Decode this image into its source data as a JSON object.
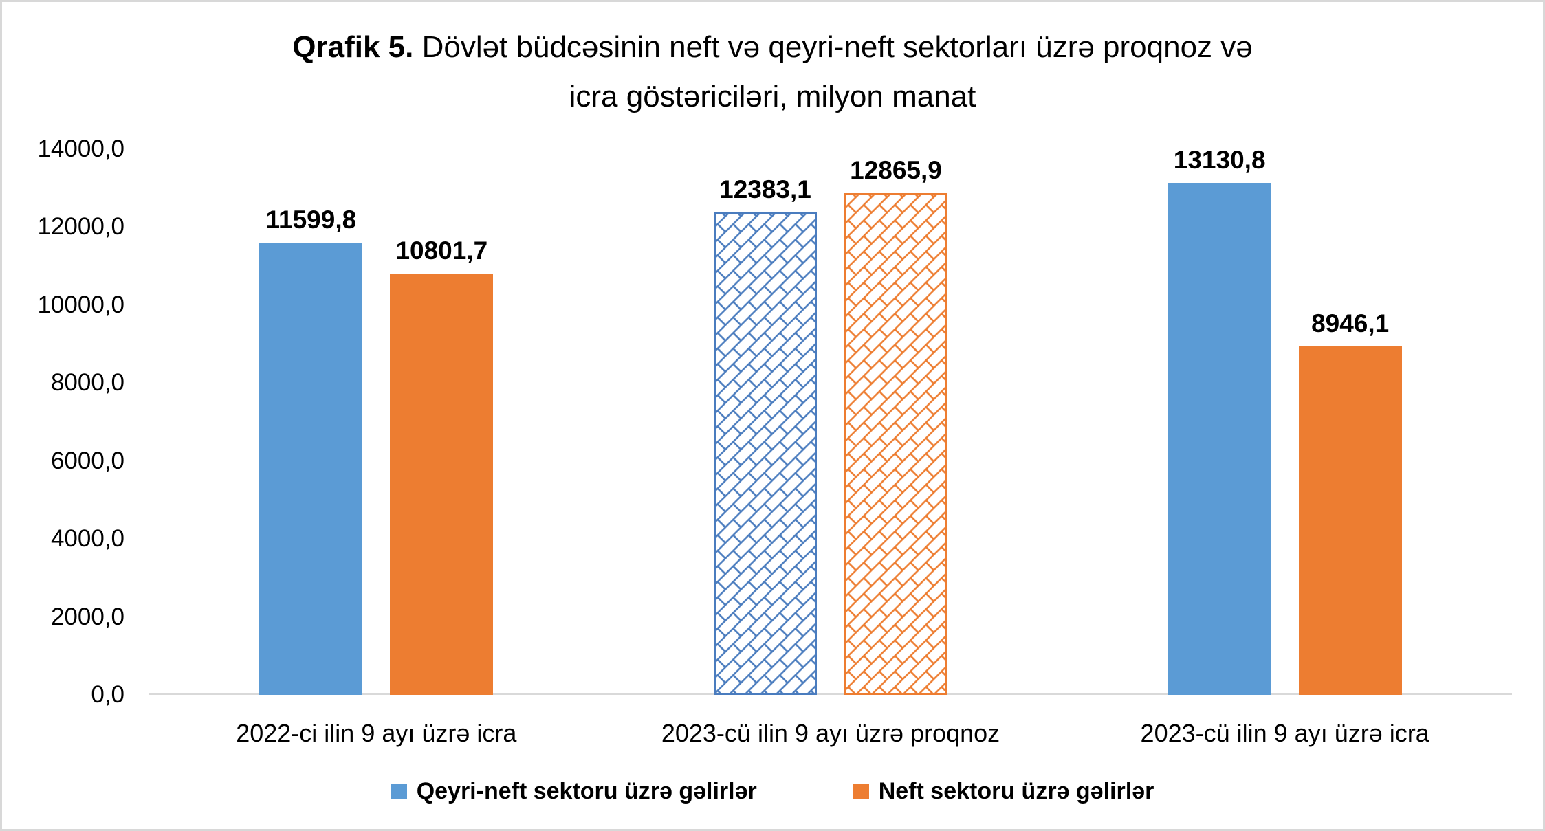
{
  "chart_data": {
    "type": "bar",
    "title": {
      "bold": "Qrafik 5.",
      "line1_rest": " Dövlət büdcəsinin neft və qeyri-neft sektorları üzrə proqnoz və",
      "line2": "icra göstəriciləri, milyon manat"
    },
    "unit": "milyon manat",
    "categories": [
      "2022-ci ilin 9 ayı üzrə icra",
      "2023-cü ilin 9 ayı üzrə proqnoz",
      "2023-cü ilin 9 ayı üzrə icra"
    ],
    "series": [
      {
        "name": "Qeyri-neft sektoru üzrə gəlirlər",
        "color": "#5B9BD5",
        "pattern_color": "#4a7cbe",
        "values": [
          11599.8,
          12383.1,
          13130.8
        ],
        "labels": [
          "11599,8",
          "12383,1",
          "13130,8"
        ]
      },
      {
        "name": "Neft sektoru üzrə gəlirlər",
        "color": "#ED7D31",
        "pattern_color": "#ED7D31",
        "values": [
          10801.7,
          12865.9,
          8946.1
        ],
        "labels": [
          "10801,7",
          "12865,9",
          "8946,1"
        ]
      }
    ],
    "hatched_categories": [
      1
    ],
    "ylim": [
      0,
      14000
    ],
    "yticks": [
      "0,0",
      "2000,0",
      "4000,0",
      "6000,0",
      "8000,0",
      "10000,0",
      "12000,0",
      "14000,0"
    ],
    "grid": false,
    "legend_position": "bottom",
    "axis_line_color": "#d9d9d9",
    "frame_border_color": "#d8d8d8"
  }
}
